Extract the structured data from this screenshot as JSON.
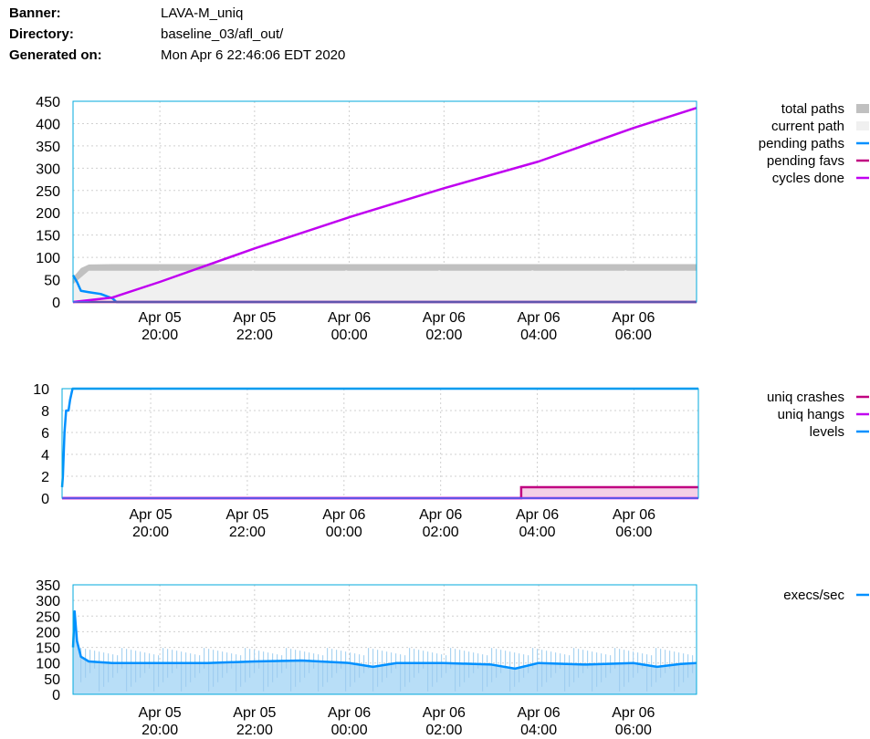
{
  "header": {
    "banner_label": "Banner:",
    "banner_value": "LAVA-M_uniq",
    "directory_label": "Directory:",
    "directory_value": "baseline_03/afl_out/",
    "generated_label": "Generated on:",
    "generated_value": "Mon Apr 6 22:46:06 EDT 2020"
  },
  "colors": {
    "total_paths": "#c0c0c0",
    "current_path": "#f0f0f0",
    "pending_paths": "#0090ff",
    "pending_favs": "#c00080",
    "cycles_done": "#c000f0",
    "uniq_crashes": "#c00080",
    "uniq_hangs": "#c000f0",
    "levels": "#0090ff",
    "execs_sec": "#0090ff",
    "execs_fill": "#b8def7",
    "axis_frame": "#00aadd"
  },
  "chart_data": [
    {
      "type": "area",
      "x_ticks": [
        {
          "top": "Apr 05",
          "bottom": "20:00"
        },
        {
          "top": "Apr 05",
          "bottom": "22:00"
        },
        {
          "top": "Apr 06",
          "bottom": "00:00"
        },
        {
          "top": "Apr 06",
          "bottom": "02:00"
        },
        {
          "top": "Apr 06",
          "bottom": "04:00"
        },
        {
          "top": "Apr 06",
          "bottom": "06:00"
        }
      ],
      "xlim": [
        "Apr 05 18:10",
        "Apr 06 07:20"
      ],
      "ylim": [
        0,
        450
      ],
      "y_ticks": [
        "0",
        "50",
        "100",
        "150",
        "200",
        "250",
        "300",
        "350",
        "400",
        "450"
      ],
      "grid": true,
      "legend_position": "right",
      "series": [
        {
          "name": "total paths",
          "x": [
            "Apr 05 18:10",
            "Apr 05 18:20",
            "Apr 05 18:30",
            "Apr 05 19:00",
            "Apr 06 07:20"
          ],
          "values": [
            55,
            76,
            84,
            85,
            85
          ]
        },
        {
          "name": "current path",
          "x": [
            "Apr 05 18:10",
            "Apr 05 18:30",
            "Apr 06 07:20"
          ],
          "values": [
            40,
            70,
            70
          ]
        },
        {
          "name": "pending paths",
          "x": [
            "Apr 05 18:10",
            "Apr 05 18:15",
            "Apr 05 18:20",
            "Apr 05 18:30",
            "Apr 05 18:45",
            "Apr 05 19:00",
            "Apr 05 19:05",
            "Apr 06 07:20"
          ],
          "values": [
            60,
            45,
            25,
            22,
            18,
            8,
            0,
            0
          ]
        },
        {
          "name": "pending favs",
          "x": [
            "Apr 05 18:10",
            "Apr 06 07:20"
          ],
          "values": [
            0,
            0
          ]
        },
        {
          "name": "cycles done",
          "x": [
            "Apr 05 18:10",
            "Apr 05 19:00",
            "Apr 05 20:00",
            "Apr 05 22:00",
            "Apr 06 00:00",
            "Apr 06 02:00",
            "Apr 06 04:00",
            "Apr 06 06:00",
            "Apr 06 07:20"
          ],
          "values": [
            0,
            10,
            45,
            120,
            190,
            255,
            315,
            390,
            435
          ]
        }
      ]
    },
    {
      "type": "line",
      "x_ticks": [
        {
          "top": "Apr 05",
          "bottom": "20:00"
        },
        {
          "top": "Apr 05",
          "bottom": "22:00"
        },
        {
          "top": "Apr 06",
          "bottom": "00:00"
        },
        {
          "top": "Apr 06",
          "bottom": "02:00"
        },
        {
          "top": "Apr 06",
          "bottom": "04:00"
        },
        {
          "top": "Apr 06",
          "bottom": "06:00"
        }
      ],
      "xlim": [
        "Apr 05 18:10",
        "Apr 06 07:20"
      ],
      "ylim": [
        0,
        10
      ],
      "y_ticks": [
        "0",
        "2",
        "4",
        "6",
        "8",
        "10"
      ],
      "grid": true,
      "legend_position": "right",
      "series": [
        {
          "name": "uniq crashes",
          "x": [
            "Apr 05 18:10",
            "Apr 06 03:40",
            "Apr 06 03:40",
            "Apr 06 07:20"
          ],
          "values": [
            0,
            0,
            1,
            1
          ]
        },
        {
          "name": "uniq hangs",
          "x": [
            "Apr 05 18:10",
            "Apr 06 07:20"
          ],
          "values": [
            0,
            0
          ]
        },
        {
          "name": "levels",
          "x": [
            "Apr 05 18:10",
            "Apr 05 18:11",
            "Apr 05 18:13",
            "Apr 05 18:15",
            "Apr 05 18:18",
            "Apr 05 18:20",
            "Apr 05 18:23",
            "Apr 06 07:20"
          ],
          "values": [
            1,
            2,
            6,
            8,
            8,
            9,
            10,
            10
          ]
        }
      ]
    },
    {
      "type": "area",
      "x_ticks": [
        {
          "top": "Apr 05",
          "bottom": "20:00"
        },
        {
          "top": "Apr 05",
          "bottom": "22:00"
        },
        {
          "top": "Apr 06",
          "bottom": "00:00"
        },
        {
          "top": "Apr 06",
          "bottom": "02:00"
        },
        {
          "top": "Apr 06",
          "bottom": "04:00"
        },
        {
          "top": "Apr 06",
          "bottom": "06:00"
        }
      ],
      "xlim": [
        "Apr 05 18:10",
        "Apr 06 07:20"
      ],
      "ylim": [
        0,
        350
      ],
      "y_ticks": [
        "0",
        "50",
        "100",
        "150",
        "200",
        "250",
        "300",
        "350"
      ],
      "grid": true,
      "legend_position": "right",
      "series": [
        {
          "name": "execs/sec",
          "x": [
            "Apr 05 18:10",
            "Apr 05 18:12",
            "Apr 05 18:15",
            "Apr 05 18:20",
            "Apr 05 18:30",
            "Apr 05 19:00",
            "Apr 05 20:00",
            "Apr 05 21:00",
            "Apr 05 22:00",
            "Apr 05 23:00",
            "Apr 06 00:00",
            "Apr 06 00:30",
            "Apr 06 01:00",
            "Apr 06 02:00",
            "Apr 06 03:00",
            "Apr 06 03:30",
            "Apr 06 04:00",
            "Apr 06 05:00",
            "Apr 06 06:00",
            "Apr 06 06:30",
            "Apr 06 07:00",
            "Apr 06 07:20"
          ],
          "values": [
            150,
            265,
            170,
            120,
            105,
            100,
            100,
            100,
            105,
            108,
            100,
            88,
            100,
            100,
            95,
            82,
            100,
            95,
            100,
            88,
            97,
            100
          ]
        }
      ]
    }
  ]
}
